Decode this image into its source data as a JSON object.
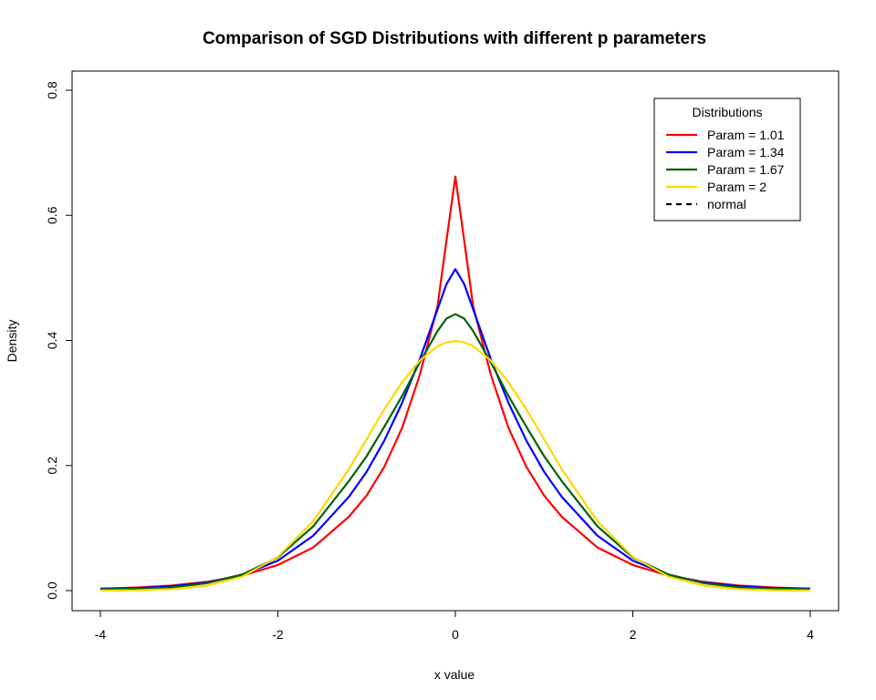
{
  "chart_data": {
    "type": "line",
    "title": "Comparison of SGD Distributions with different p parameters",
    "xlabel": "x value",
    "ylabel": "Density",
    "xlim": [
      -4,
      4
    ],
    "ylim": [
      0,
      0.8
    ],
    "x_ticks": [
      "-4",
      "-2",
      "0",
      "2",
      "4"
    ],
    "y_ticks": [
      "0.0",
      "0.2",
      "0.4",
      "0.6",
      "0.8"
    ],
    "grid": false,
    "legend": {
      "title": "Distributions",
      "position": "top-right",
      "entries": [
        {
          "label": "Param = 1.01",
          "color": "#ff0000",
          "dash": false
        },
        {
          "label": "Param = 1.34",
          "color": "#0000ff",
          "dash": false
        },
        {
          "label": "Param = 1.67",
          "color": "#006400",
          "dash": false
        },
        {
          "label": "Param = 2",
          "color": "#ffd700",
          "dash": false
        },
        {
          "label": "normal",
          "color": "#000000",
          "dash": true
        }
      ]
    },
    "x": [
      -4.0,
      -3.6,
      -3.2,
      -2.8,
      -2.4,
      -2.0,
      -1.6,
      -1.2,
      -1.0,
      -0.8,
      -0.6,
      -0.4,
      -0.2,
      -0.1,
      0.0,
      0.1,
      0.2,
      0.4,
      0.6,
      0.8,
      1.0,
      1.2,
      1.6,
      2.0,
      2.4,
      2.8,
      3.2,
      3.6,
      4.0
    ],
    "series": [
      {
        "name": "Param = 1.01",
        "color": "#ff0000",
        "values": [
          0.003,
          0.005,
          0.008,
          0.014,
          0.024,
          0.041,
          0.069,
          0.118,
          0.152,
          0.198,
          0.26,
          0.345,
          0.455,
          0.56,
          0.662,
          0.56,
          0.455,
          0.345,
          0.26,
          0.198,
          0.152,
          0.118,
          0.069,
          0.041,
          0.024,
          0.014,
          0.008,
          0.005,
          0.003
        ]
      },
      {
        "name": "Param = 1.34",
        "color": "#0000ff",
        "values": [
          0.003,
          0.004,
          0.007,
          0.013,
          0.025,
          0.048,
          0.088,
          0.15,
          0.19,
          0.24,
          0.3,
          0.37,
          0.45,
          0.49,
          0.514,
          0.49,
          0.45,
          0.37,
          0.3,
          0.24,
          0.19,
          0.15,
          0.088,
          0.048,
          0.025,
          0.013,
          0.007,
          0.004,
          0.003
        ]
      },
      {
        "name": "Param = 1.67",
        "color": "#006400",
        "values": [
          0.002,
          0.003,
          0.005,
          0.012,
          0.026,
          0.053,
          0.103,
          0.175,
          0.215,
          0.262,
          0.311,
          0.365,
          0.415,
          0.435,
          0.442,
          0.435,
          0.415,
          0.365,
          0.311,
          0.262,
          0.215,
          0.175,
          0.103,
          0.053,
          0.026,
          0.012,
          0.005,
          0.003,
          0.002
        ]
      },
      {
        "name": "Param = 2",
        "color": "#ffd700",
        "values": [
          0.0001,
          0.0006,
          0.0024,
          0.0079,
          0.0224,
          0.054,
          0.111,
          0.194,
          0.242,
          0.29,
          0.333,
          0.368,
          0.391,
          0.397,
          0.399,
          0.397,
          0.391,
          0.368,
          0.333,
          0.29,
          0.242,
          0.194,
          0.111,
          0.054,
          0.0224,
          0.0079,
          0.0024,
          0.0006,
          0.0001
        ]
      }
    ]
  }
}
